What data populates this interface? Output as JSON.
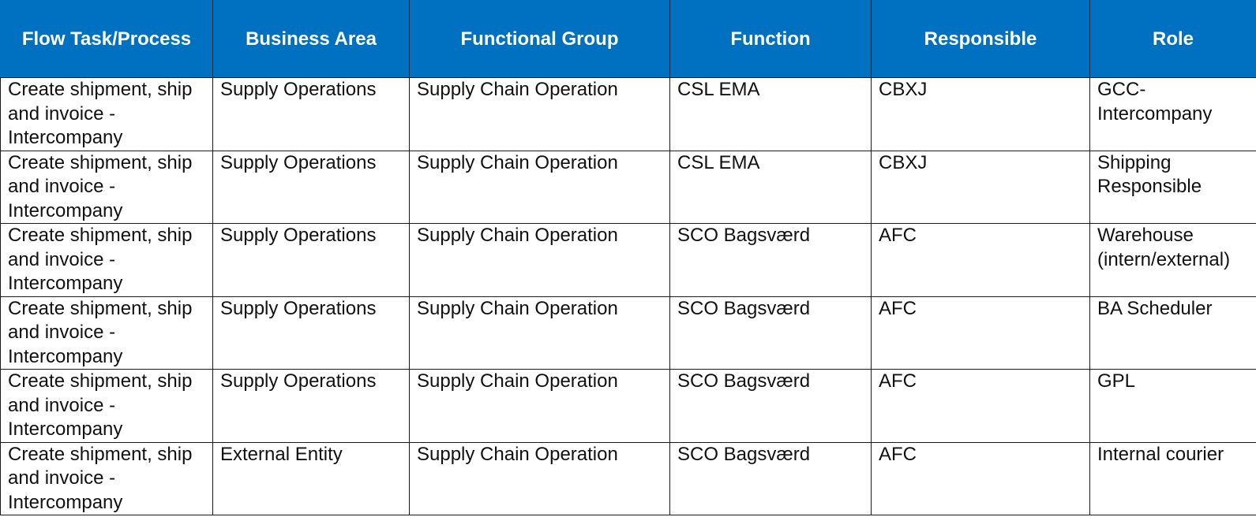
{
  "table": {
    "headers": [
      "Flow Task/Process",
      "Business Area",
      "Functional Group",
      "Function",
      "Responsible",
      "Role"
    ],
    "rows": [
      [
        "Create shipment, ship and invoice - Intercompany",
        "Supply Operations",
        "Supply Chain Operation",
        "CSL EMA",
        "CBXJ",
        "GCC-Intercompany"
      ],
      [
        "Create shipment, ship and invoice - Intercompany",
        "Supply Operations",
        "Supply Chain Operation",
        "CSL EMA",
        "CBXJ",
        "Shipping Responsible"
      ],
      [
        "Create shipment, ship and invoice - Intercompany",
        "Supply Operations",
        "Supply Chain Operation",
        "SCO Bagsværd",
        "AFC",
        "Warehouse (intern/external)"
      ],
      [
        "Create shipment, ship and invoice - Intercompany",
        "Supply Operations",
        "Supply Chain Operation",
        "SCO Bagsværd",
        "AFC",
        "BA Scheduler"
      ],
      [
        "Create shipment, ship and invoice - Intercompany",
        "Supply Operations",
        "Supply Chain Operation",
        "SCO Bagsværd",
        "AFC",
        "GPL"
      ],
      [
        "Create shipment, ship and invoice - Intercompany",
        "External Entity",
        "Supply Chain Operation",
        "SCO Bagsværd",
        "AFC",
        "Internal courier"
      ]
    ]
  },
  "colors": {
    "header_bg": "#0070c0",
    "header_text": "#ffffff",
    "border": "#1a1a1a"
  }
}
